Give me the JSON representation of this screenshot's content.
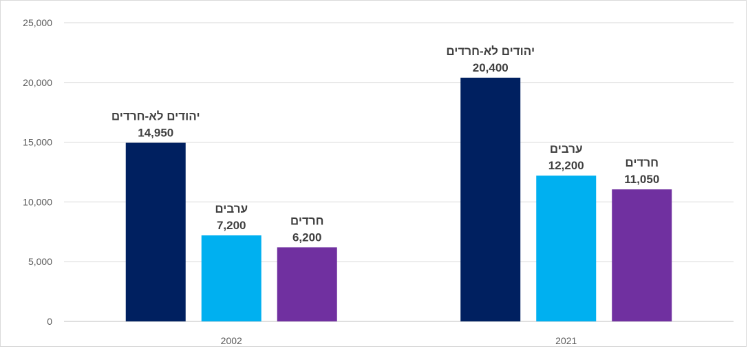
{
  "chart_data": {
    "type": "bar",
    "categories": [
      "2002",
      "2021"
    ],
    "series": [
      {
        "name": "יהודים לא-חרדים",
        "values": [
          14950,
          20400
        ],
        "color": "#002060"
      },
      {
        "name": "ערבים",
        "values": [
          7200,
          12200
        ],
        "color": "#00B0F0"
      },
      {
        "name": "חרדים",
        "values": [
          6200,
          11050
        ],
        "color": "#7030A0"
      }
    ],
    "data_labels": [
      [
        "14,950",
        "20,400"
      ],
      [
        "7,200",
        "12,200"
      ],
      [
        "6,200",
        "11,050"
      ]
    ],
    "ylim": [
      0,
      25000
    ],
    "yticks": [
      0,
      5000,
      10000,
      15000,
      20000,
      25000
    ],
    "ytick_labels": [
      "0",
      "5,000",
      "10,000",
      "15,000",
      "20,000",
      "25,000"
    ],
    "grid": true,
    "legend": "none",
    "title": "",
    "xlabel": "",
    "ylabel": ""
  }
}
